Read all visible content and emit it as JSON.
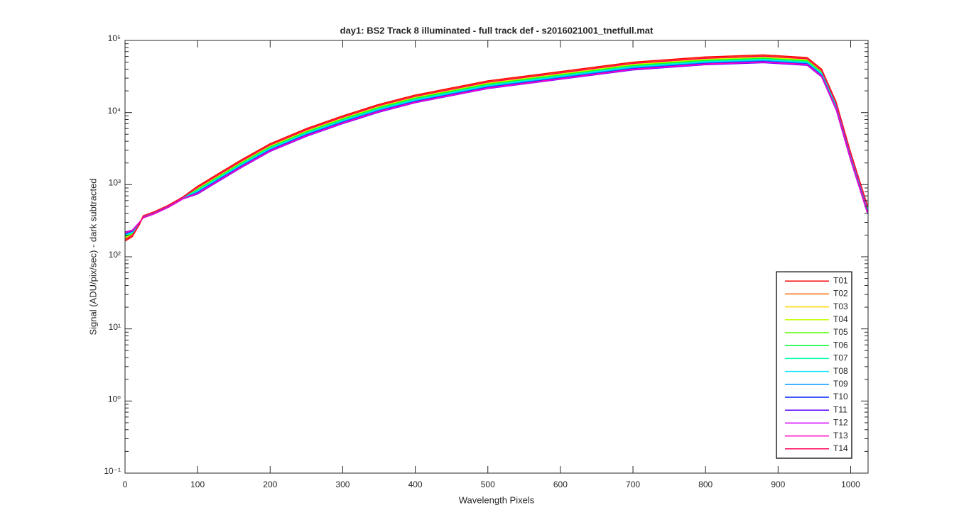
{
  "chart_data": {
    "type": "line",
    "title": "day1: BS2  Track 8 illuminated - full track def - s2016021001_tnetfull.mat",
    "xlabel": "Wavelength Pixels",
    "ylabel": "Signal (ADU/pix/sec) - dark subtracted",
    "log_y": true,
    "legend_position": "lower right",
    "xlim": [
      0,
      1024
    ],
    "xticks": [
      0,
      100,
      200,
      300,
      400,
      500,
      600,
      700,
      800,
      900,
      1000
    ],
    "ylim": [
      0.1,
      100000
    ],
    "yticks": [
      {
        "value": 0.1,
        "label": "10⁻¹"
      },
      {
        "value": 1,
        "label": "10⁰"
      },
      {
        "value": 10,
        "label": "10¹"
      },
      {
        "value": 100,
        "label": "10²"
      },
      {
        "value": 1000,
        "label": "10³"
      },
      {
        "value": 10000,
        "label": "10⁴"
      },
      {
        "value": 100000,
        "label": "10⁵"
      }
    ],
    "x": [
      0,
      10,
      20,
      25,
      40,
      60,
      80,
      100,
      130,
      160,
      200,
      250,
      300,
      350,
      400,
      500,
      600,
      700,
      800,
      880,
      940,
      960,
      980,
      1000,
      1023
    ],
    "series": [
      {
        "name": "T01",
        "color": "#ff0000",
        "values": [
          165,
          190,
          280,
          370,
          420,
          520,
          680,
          950,
          1450,
          2200,
          3700,
          6000,
          9000,
          13000,
          17500,
          27500,
          37000,
          50000,
          59000,
          63000,
          58000,
          40000,
          14000,
          2800,
          520
        ]
      },
      {
        "name": "T02",
        "color": "#ff6a00",
        "values": [
          172,
          196,
          283,
          367,
          416,
          515,
          674,
          920,
          1410,
          2130,
          3590,
          5820,
          8730,
          12600,
          17000,
          26700,
          35900,
          48500,
          57200,
          61100,
          56300,
          38800,
          13600,
          2720,
          504
        ]
      },
      {
        "name": "T03",
        "color": "#ffd500",
        "values": [
          180,
          202,
          286,
          363,
          412,
          511,
          668,
          893,
          1363,
          2068,
          3478,
          5640,
          8460,
          12200,
          16500,
          25900,
          34800,
          47000,
          55500,
          59200,
          54500,
          37600,
          13200,
          2630,
          489
        ]
      },
      {
        "name": "T04",
        "color": "#bfff00",
        "values": [
          185,
          206,
          288,
          361,
          410,
          508,
          664,
          874,
          1334,
          2024,
          3404,
          5520,
          8280,
          12000,
          16100,
          25300,
          34000,
          46000,
          54300,
          58000,
          53400,
          36800,
          12900,
          2580,
          478
        ]
      },
      {
        "name": "T05",
        "color": "#55ff00",
        "values": [
          190,
          210,
          290,
          359,
          407,
          504,
          660,
          855,
          1305,
          1980,
          3330,
          5400,
          8100,
          11700,
          15800,
          24800,
          33300,
          45000,
          53100,
          56700,
          52200,
          36000,
          12600,
          2520,
          468
        ]
      },
      {
        "name": "T06",
        "color": "#00ff2a",
        "values": [
          192,
          212,
          291,
          358,
          406,
          503,
          658,
          846,
          1291,
          1958,
          3293,
          5340,
          8010,
          11600,
          15600,
          24500,
          32900,
          44500,
          52500,
          56100,
          51600,
          35600,
          12500,
          2490,
          463
        ]
      },
      {
        "name": "T07",
        "color": "#00ffaa",
        "values": [
          197,
          216,
          293,
          356,
          404,
          500,
          653,
          827,
          1262,
          1914,
          3219,
          5220,
          7830,
          11300,
          15200,
          23900,
          32200,
          43500,
          51300,
          54800,
          50500,
          34800,
          12200,
          2440,
          452
        ]
      },
      {
        "name": "T08",
        "color": "#00e5ff",
        "values": [
          202,
          220,
          295,
          353,
          401,
          497,
          649,
          808,
          1233,
          1870,
          3145,
          5100,
          7650,
          11100,
          14900,
          23400,
          31500,
          42500,
          50200,
          53600,
          49300,
          34000,
          11900,
          2380,
          442
        ]
      },
      {
        "name": "T09",
        "color": "#0095ff",
        "values": [
          207,
          224,
          297,
          351,
          399,
          494,
          645,
          789,
          1204,
          1826,
          3071,
          4980,
          7470,
          10800,
          14500,
          22800,
          30700,
          41500,
          49000,
          52300,
          48100,
          33200,
          11600,
          2320,
          432
        ]
      },
      {
        "name": "T10",
        "color": "#0022ff",
        "values": [
          212,
          228,
          299,
          349,
          396,
          490,
          641,
          770,
          1175,
          1782,
          2997,
          4860,
          7290,
          10500,
          14200,
          22300,
          30000,
          40500,
          47800,
          51000,
          47000,
          32400,
          11300,
          2270,
          421
        ]
      },
      {
        "name": "T11",
        "color": "#5500ff",
        "values": [
          220,
          234,
          302,
          346,
          392,
          486,
          635,
          741,
          1131,
          1716,
          2886,
          4680,
          7020,
          10100,
          13700,
          21500,
          28900,
          39000,
          46000,
          49100,
          45200,
          31200,
          10900,
          2180,
          406
        ]
      },
      {
        "name": "T12",
        "color": "#d400ff",
        "values": [
          217,
          232,
          301,
          347,
          394,
          487,
          637,
          751,
          1146,
          1738,
          2923,
          4740,
          7110,
          10300,
          13800,
          21700,
          29200,
          39500,
          46600,
          49800,
          45800,
          31600,
          11100,
          2210,
          411
        ]
      },
      {
        "name": "T13",
        "color": "#ff00bf",
        "values": [
          215,
          230,
          300,
          348,
          395,
          489,
          639,
          760,
          1160,
          1760,
          2960,
          4800,
          7200,
          10400,
          14000,
          22000,
          29600,
          40000,
          47200,
          50400,
          46400,
          32000,
          11200,
          2240,
          416
        ]
      },
      {
        "name": "T14",
        "color": "#ff0055",
        "values": [
          175,
          198,
          284,
          366,
          415,
          514,
          672,
          912,
          1392,
          2112,
          3552,
          5760,
          8640,
          12500,
          16800,
          26400,
          35500,
          48000,
          56600,
          60500,
          55700,
          38400,
          13400,
          2690,
          499
        ]
      }
    ]
  }
}
